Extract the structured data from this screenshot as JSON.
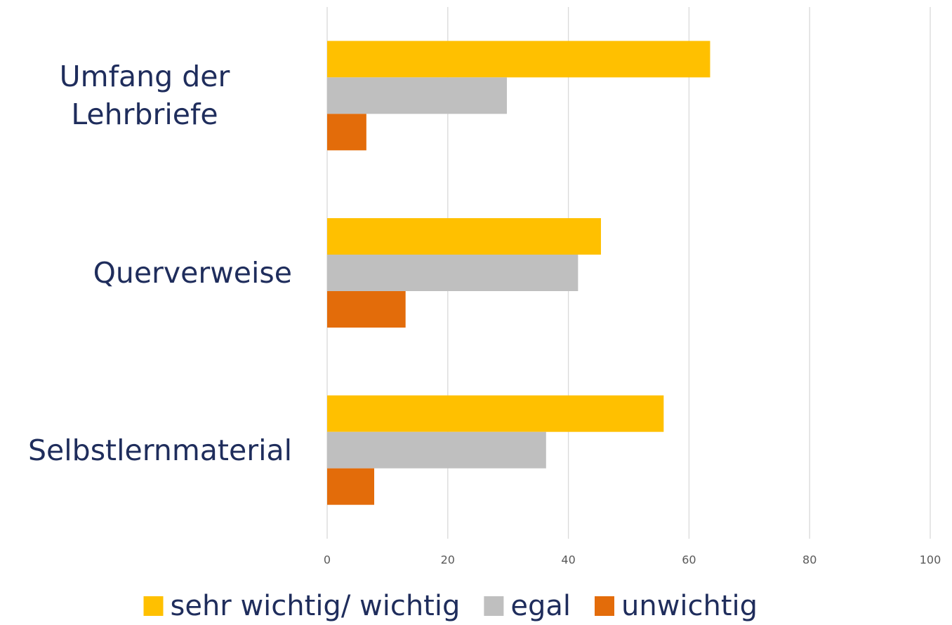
{
  "chart_data": {
    "type": "barh",
    "categories": [
      "Umfang der Lehrbriefe",
      "Querverweise",
      "Selbstlernmaterial"
    ],
    "series": [
      {
        "name": "sehr wichtig/ wichtig",
        "color": "#ffc000",
        "values": [
          63.5,
          45.4,
          55.8
        ]
      },
      {
        "name": "egal",
        "color": "#bfbfbf",
        "values": [
          29.8,
          41.6,
          36.3
        ]
      },
      {
        "name": "unwichtig",
        "color": "#e36c0a",
        "values": [
          6.5,
          13.0,
          7.8
        ]
      }
    ],
    "xlim": [
      0,
      100
    ],
    "xticks": [
      0,
      20,
      40,
      60,
      80,
      100
    ],
    "grid": true,
    "legend": "bottom"
  }
}
